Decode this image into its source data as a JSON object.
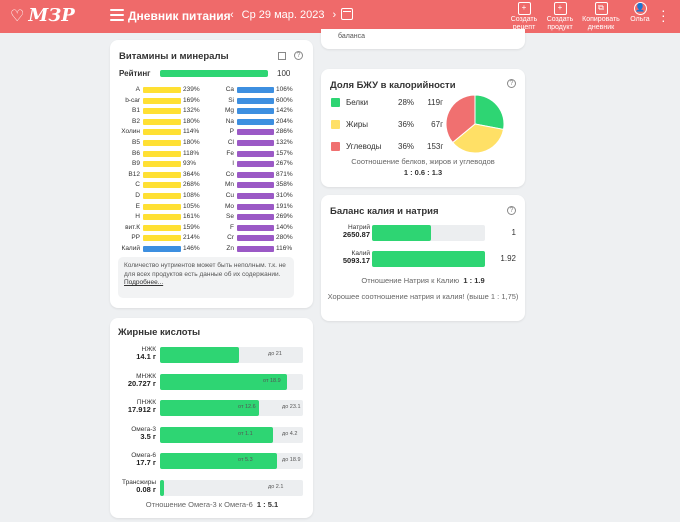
{
  "header": {
    "logo": "МЗР",
    "title": "Дневник питания",
    "date": "Ср 29 мар. 2023",
    "actions": [
      {
        "line1": "Создать",
        "line2": "рецепт"
      },
      {
        "line1": "Создать",
        "line2": "продукт"
      },
      {
        "line1": "Копировать",
        "line2": "дневник"
      },
      {
        "line1": "Ольга",
        "line2": ""
      }
    ],
    "colors": {
      "bar": "#ef6a6a"
    }
  },
  "top_strip": {
    "text": "баланса"
  },
  "vitamins": {
    "title": "Витамины и минералы",
    "rating_label": "Рейтинг",
    "rating_value": "100",
    "left": [
      {
        "name": "A",
        "pct": "239%",
        "value": 239
      },
      {
        "name": "b-car",
        "pct": "169%",
        "value": 169
      },
      {
        "name": "B1",
        "pct": "132%",
        "value": 132
      },
      {
        "name": "B2",
        "pct": "180%",
        "value": 180
      },
      {
        "name": "Холин",
        "pct": "114%",
        "value": 114
      },
      {
        "name": "B5",
        "pct": "180%",
        "value": 180
      },
      {
        "name": "B6",
        "pct": "118%",
        "value": 118
      },
      {
        "name": "B9",
        "pct": "93%",
        "value": 93
      },
      {
        "name": "B12",
        "pct": "364%",
        "value": 364
      },
      {
        "name": "C",
        "pct": "268%",
        "value": 268
      },
      {
        "name": "D",
        "pct": "108%",
        "value": 108
      },
      {
        "name": "E",
        "pct": "105%",
        "value": 105
      },
      {
        "name": "H",
        "pct": "161%",
        "value": 161
      },
      {
        "name": "вит.К",
        "pct": "159%",
        "value": 159
      },
      {
        "name": "PP",
        "pct": "214%",
        "value": 214
      },
      {
        "name": "Калий",
        "pct": "146%",
        "value": 146
      }
    ],
    "right": [
      {
        "name": "Ca",
        "pct": "106%",
        "value": 106
      },
      {
        "name": "Si",
        "pct": "600%",
        "value": 600
      },
      {
        "name": "Mg",
        "pct": "142%",
        "value": 142
      },
      {
        "name": "Na",
        "pct": "204%",
        "value": 204
      },
      {
        "name": "P",
        "pct": "286%",
        "value": 286
      },
      {
        "name": "Cl",
        "pct": "132%",
        "value": 132
      },
      {
        "name": "Fe",
        "pct": "157%",
        "value": 157
      },
      {
        "name": "I",
        "pct": "267%",
        "value": 267
      },
      {
        "name": "Co",
        "pct": "871%",
        "value": 871
      },
      {
        "name": "Mn",
        "pct": "358%",
        "value": 358
      },
      {
        "name": "Cu",
        "pct": "310%",
        "value": 310
      },
      {
        "name": "Mo",
        "pct": "191%",
        "value": 191
      },
      {
        "name": "Se",
        "pct": "269%",
        "value": 269
      },
      {
        "name": "F",
        "pct": "140%",
        "value": 140
      },
      {
        "name": "Cr",
        "pct": "280%",
        "value": 280
      },
      {
        "name": "Zn",
        "pct": "116%",
        "value": 116
      }
    ],
    "note_text": "Количество нутриентов может быть неполным. т.к. не для всех продуктов есть данные об их содержании.",
    "note_link": "Подробнее...",
    "colors": {
      "yellow": "#ffe033",
      "blue": "#3d8fe0",
      "purple": "#9b59c6",
      "rating": "#2ed573"
    }
  },
  "fatty": {
    "title": "Жирные кислоты",
    "rows": [
      {
        "name": "НЖК",
        "amount": "14.1 г",
        "fill": 0.55,
        "min": "",
        "max": "до 21"
      },
      {
        "name": "МНЖК",
        "amount": "20.727 г",
        "fill": 0.89,
        "min": "от 18.9",
        "max": ""
      },
      {
        "name": "ПНЖК",
        "amount": "17.912 г",
        "fill": 0.69,
        "min": "от 12.6",
        "max": "до 23.1"
      },
      {
        "name": "Омега-3",
        "amount": "3.5 г",
        "fill": 0.79,
        "min": "от 1.1",
        "max": "до 4.2"
      },
      {
        "name": "Омега-6",
        "amount": "17.7 г",
        "fill": 0.82,
        "min": "от 5.3",
        "max": "до 18.9"
      },
      {
        "name": "Трансжиры",
        "amount": "0.08 г",
        "fill": 0.03,
        "min": "",
        "max": "до 2.1"
      }
    ],
    "ratio_text": "Отношение Омега-3 к Омега-6",
    "ratio_value": "1 : 5.1"
  },
  "bju": {
    "title": "Доля БЖУ в калорийности",
    "items": [
      {
        "name": "Белки",
        "pct": "28%",
        "grams": "119г",
        "value": 28,
        "color": "#2ed573"
      },
      {
        "name": "Жиры",
        "pct": "36%",
        "grams": "67г",
        "value": 36,
        "color": "#ffe066"
      },
      {
        "name": "Углеводы",
        "pct": "36%",
        "grams": "153г",
        "value": 36,
        "color": "#f07070"
      }
    ],
    "caption": "Соотношение белков, жиров и углеводов",
    "ratio": "1 : 0.6 : 1.3"
  },
  "balance": {
    "title": "Баланс калия и натрия",
    "rows": [
      {
        "name": "Натрий",
        "amount": "2650.87",
        "fill": 0.52,
        "ratio": "1"
      },
      {
        "name": "Калий",
        "amount": "5093.17",
        "fill": 1.0,
        "ratio": "1.92"
      }
    ],
    "ratio_text": "Отношение Натрия к Калию",
    "ratio_value": "1 : 1.9",
    "good_text": "Хорошее соотношение натрия и калия! (выше 1 : 1,75)"
  }
}
